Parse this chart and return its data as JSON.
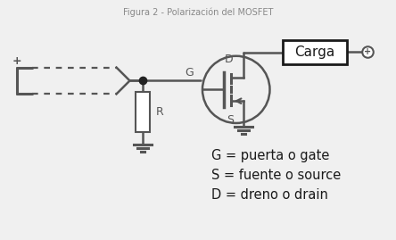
{
  "bg_color": "#f0f0f0",
  "title": "Figura 2 - Polarización del MOSFET",
  "legend_lines": [
    "G = puerta o gate",
    "S = fuente o source",
    "D = dreno o drain"
  ],
  "text_color": "#1a1a1a",
  "component_color": "#555555",
  "line_color": "#555555",
  "mosfet_circle_color": "#555555",
  "carga_box_color": "#1a1a1a"
}
